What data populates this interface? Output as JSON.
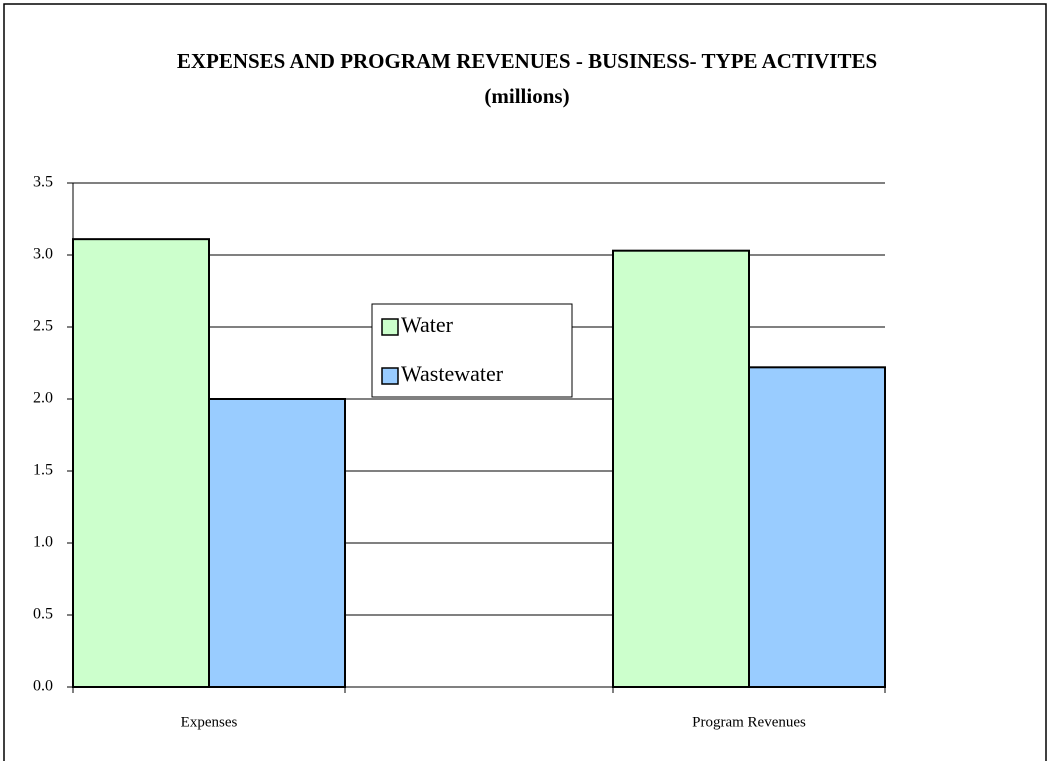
{
  "chart_data": {
    "type": "bar",
    "title": "EXPENSES AND PROGRAM REVENUES - BUSINESS- TYPE ACTIVITES (millions)",
    "categories": [
      "Expenses",
      "Program Revenues"
    ],
    "series": [
      {
        "name": "Water",
        "color": "#ccffcc",
        "values": [
          3.11,
          3.03
        ]
      },
      {
        "name": "Wastewater",
        "color": "#99ccff",
        "values": [
          2.0,
          2.22
        ]
      }
    ],
    "ylim": [
      0,
      3.5
    ],
    "yticks": [
      {
        "value": 0,
        "label": "0.0"
      },
      0.5,
      {
        "value": 1,
        "label": "1.0"
      },
      1.5,
      {
        "value": 2,
        "label": "2.0"
      },
      2.5,
      {
        "value": 3,
        "label": "3.0"
      },
      3.5
    ],
    "grid": true,
    "legend": "center"
  }
}
